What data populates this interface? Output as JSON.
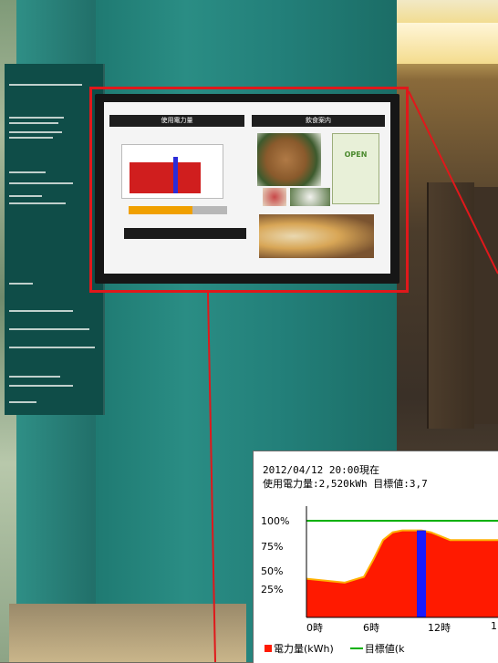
{
  "screen": {
    "title_left": "使用電力量",
    "title_right": "飲食案内",
    "open_sign": "OPEN"
  },
  "inset": {
    "line1": "2012/04/12 20:00現在",
    "line2": "使用電力量:2,520kWh 目標値:3,7",
    "yticks": [
      "100%",
      "75%",
      "50%",
      "25%"
    ],
    "xticks": [
      "0時",
      "6時",
      "12時",
      "1"
    ],
    "legend": {
      "usage": "電力量(kWh)",
      "target": "目標値(k"
    },
    "colors": {
      "usage": "#ff1a00",
      "current_hour": "#1a1aff",
      "target": "#00b000",
      "smooth_line": "#ffb000"
    }
  },
  "chart_data": {
    "type": "area",
    "x_unit": "hour",
    "y_unit": "percent of target",
    "ylim": [
      0,
      110
    ],
    "target_level": 100,
    "current_hour": 12,
    "x": [
      0,
      2,
      4,
      6,
      7,
      8,
      9,
      10,
      11,
      12,
      13,
      14,
      15
    ],
    "values": [
      40,
      38,
      36,
      42,
      60,
      80,
      88,
      90,
      90,
      90,
      88,
      84,
      80
    ],
    "xlabels": [
      "0時",
      "6時",
      "12時",
      "1"
    ],
    "yticks": [
      "100%",
      "75%",
      "50%",
      "25%"
    ],
    "series": [
      {
        "name": "電力量(kWh)",
        "color": "#ff1a00"
      },
      {
        "name": "目標値(k",
        "color": "#00b000"
      }
    ]
  }
}
